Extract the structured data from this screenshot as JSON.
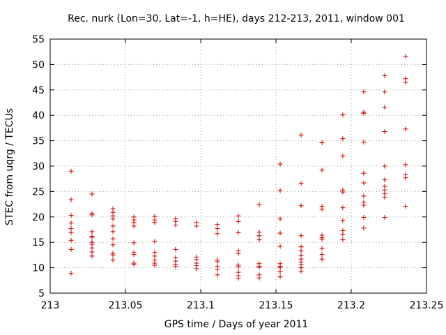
{
  "chart_data": {
    "type": "scatter",
    "title": "Rec. nurk (Lon=30, Lat=-1, h=HE), days 212-213, 2011, window 001",
    "xlabel": "GPS time / Days of year 2011",
    "ylabel": "STEC from uqrg / TECUs",
    "xlim": [
      213,
      213.25
    ],
    "ylim": [
      5,
      55
    ],
    "xticks": [
      "213",
      "213.05",
      "213.1",
      "213.15",
      "213.2",
      "213.25"
    ],
    "yticks": [
      "5",
      "10",
      "15",
      "20",
      "25",
      "30",
      "35",
      "40",
      "45",
      "50",
      "55"
    ],
    "grid": true,
    "marker": "+",
    "color": "#cc0000",
    "columns": [
      {
        "x": 213.0139,
        "y": [
          29.0,
          23.4,
          20.3,
          18.8,
          17.7,
          16.9,
          15.4,
          13.6,
          8.9
        ]
      },
      {
        "x": 213.0278,
        "y": [
          24.5,
          20.7,
          20.4,
          17.1,
          16.2,
          16.0,
          15.0,
          14.6,
          13.9,
          13.1,
          12.3
        ]
      },
      {
        "x": 213.0417,
        "y": [
          21.6,
          20.9,
          20.2,
          19.6,
          18.2,
          17.1,
          15.7,
          14.5,
          12.8,
          12.5,
          11.5
        ]
      },
      {
        "x": 213.0556,
        "y": [
          20.0,
          19.4,
          18.9,
          18.2,
          14.9,
          13.0,
          12.6,
          10.9,
          10.7
        ]
      },
      {
        "x": 213.0694,
        "y": [
          20.1,
          19.4,
          18.9,
          15.2,
          13.0,
          12.3,
          11.5,
          10.9,
          10.5
        ]
      },
      {
        "x": 213.0833,
        "y": [
          19.6,
          19.1,
          18.4,
          13.6,
          12.0,
          11.3,
          10.7,
          10.3
        ]
      },
      {
        "x": 213.0972,
        "y": [
          18.9,
          18.2,
          12.1,
          11.6,
          10.9,
          10.4,
          9.8
        ]
      },
      {
        "x": 213.1111,
        "y": [
          18.5,
          17.7,
          16.7,
          11.5,
          11.2,
          10.3,
          9.7,
          8.6
        ]
      },
      {
        "x": 213.125,
        "y": [
          20.2,
          19.1,
          16.9,
          13.3,
          12.8,
          10.5,
          10.2,
          9.1,
          8.4,
          7.9
        ]
      },
      {
        "x": 213.1389,
        "y": [
          22.4,
          17.0,
          16.3,
          15.5,
          10.8,
          10.3,
          10.1,
          8.6,
          8.0
        ]
      },
      {
        "x": 213.1528,
        "y": [
          30.4,
          25.2,
          19.6,
          16.8,
          14.2,
          10.8,
          10.3,
          10.0,
          9.2,
          8.2
        ]
      },
      {
        "x": 213.1667,
        "y": [
          36.1,
          26.6,
          22.2,
          16.3,
          14.1,
          13.3,
          12.4,
          11.7,
          11.1,
          10.6,
          10.0,
          9.3
        ]
      },
      {
        "x": 213.1806,
        "y": [
          34.6,
          29.2,
          22.1,
          21.5,
          16.4,
          15.9,
          15.6,
          13.8,
          12.6,
          11.7
        ]
      },
      {
        "x": 213.1944,
        "y": [
          40.1,
          35.4,
          32.0,
          25.3,
          24.9,
          21.8,
          19.3,
          17.3,
          16.6,
          15.5
        ]
      },
      {
        "x": 213.2083,
        "y": [
          44.6,
          40.6,
          40.4,
          34.7,
          28.6,
          26.7,
          24.1,
          22.9,
          22.3,
          19.9,
          17.8
        ]
      },
      {
        "x": 213.2222,
        "y": [
          47.8,
          44.6,
          41.6,
          36.8,
          30.0,
          27.3,
          26.0,
          25.3,
          24.6,
          23.9,
          19.9
        ]
      },
      {
        "x": 213.2361,
        "y": [
          51.6,
          47.2,
          46.5,
          37.3,
          30.3,
          28.3,
          27.7,
          22.1
        ]
      }
    ]
  }
}
